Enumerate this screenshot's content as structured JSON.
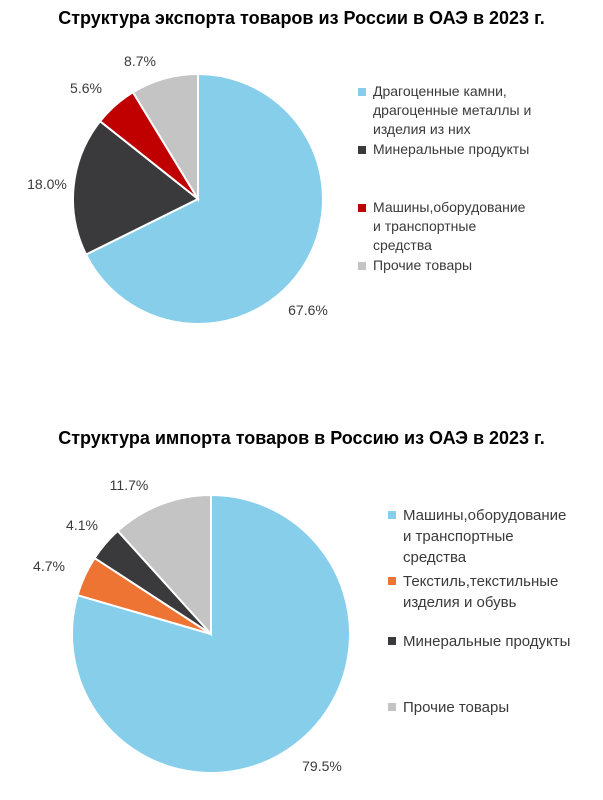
{
  "chart_data": [
    {
      "type": "pie",
      "title": "Структура экспорта товаров из России в ОАЭ в 2023 г.",
      "legend_position": "right",
      "slices": [
        {
          "label": "Драгоценные камни,\nдрагоценные металлы и\nизделия из них",
          "value": 67.6,
          "display": "67.6%",
          "color": "#87ceeb"
        },
        {
          "label": "Минеральные продукты",
          "value": 18.0,
          "display": "18.0%",
          "color": "#3a3a3c"
        },
        {
          "label": "Машины,оборудование\nи транспортные\nсредства",
          "value": 5.6,
          "display": "5.6%",
          "color": "#c00000"
        },
        {
          "label": "Прочие товары",
          "value": 8.7,
          "display": "8.7%",
          "color": "#c4c4c4"
        }
      ]
    },
    {
      "type": "pie",
      "title": "Структура импорта товаров в Россию из ОАЭ в 2023 г.",
      "legend_position": "right",
      "slices": [
        {
          "label": "Машины,оборудование\nи транспортные\nсредства",
          "value": 79.5,
          "display": "79.5%",
          "color": "#87ceeb"
        },
        {
          "label": "Текстиль,текстильные\nизделия и обувь",
          "value": 4.7,
          "display": "4.7%",
          "color": "#ed7433"
        },
        {
          "label": "Минеральные продукты",
          "value": 4.1,
          "display": "4.1%",
          "color": "#3a3a3c"
        },
        {
          "label": "Прочие товары",
          "value": 11.7,
          "display": "11.7%",
          "color": "#c4c4c4"
        }
      ]
    }
  ]
}
